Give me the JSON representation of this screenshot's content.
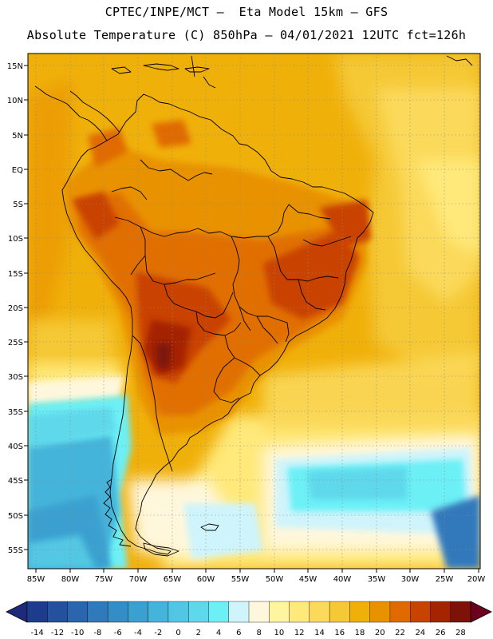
{
  "header": {
    "line1": "CPTEC/INPE/MCT –  Eta Model 15km – GFS",
    "line2": "Absolute Temperature (C) 850hPa – 04/01/2021 12UTC fct=126h"
  },
  "map": {
    "lat_labels": [
      "15N",
      "10N",
      "5N",
      "EQ",
      "5S",
      "10S",
      "15S",
      "20S",
      "25S",
      "30S",
      "35S",
      "40S",
      "45S",
      "50S",
      "55S"
    ],
    "lon_labels": [
      "85W",
      "80W",
      "75W",
      "70W",
      "65W",
      "60W",
      "55W",
      "50W",
      "45W",
      "40W",
      "35W",
      "30W",
      "25W",
      "20W"
    ]
  },
  "colorbar": {
    "tick_labels": [
      "-14",
      "-12",
      "-10",
      "-8",
      "-6",
      "-4",
      "-2",
      "0",
      "2",
      "4",
      "6",
      "8",
      "10",
      "12",
      "14",
      "16",
      "18",
      "20",
      "22",
      "24",
      "26",
      "28"
    ],
    "colors": [
      "#1e3c8c",
      "#23519e",
      "#2a65ae",
      "#3079bb",
      "#358dc6",
      "#3aa0d0",
      "#44b4da",
      "#52c7e3",
      "#5ed8eb",
      "#6cf0f6",
      "#cff4fb",
      "#fff7dc",
      "#fff5a0",
      "#ffe97a",
      "#fbd95a",
      "#f5c835",
      "#f0b00a",
      "#e99200",
      "#e06a00",
      "#c94300",
      "#a52400",
      "#7d1208"
    ],
    "arrow_left_color": "#1e2a7a",
    "arrow_right_color": "#6b001e"
  }
}
